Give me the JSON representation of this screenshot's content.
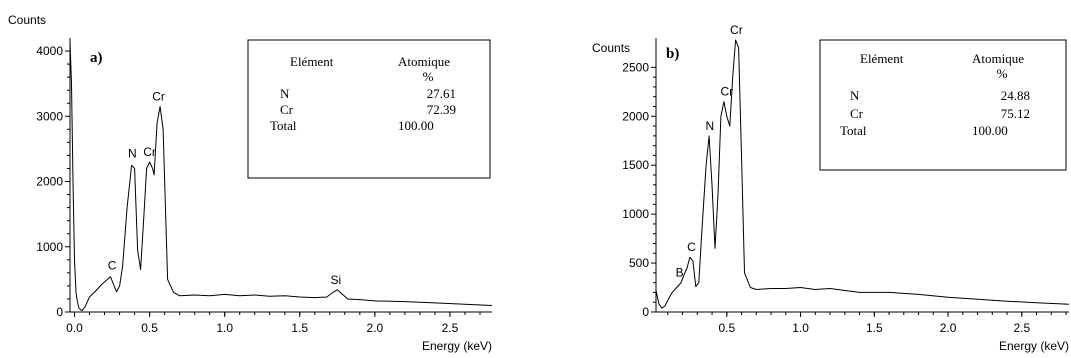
{
  "chart_data": [
    {
      "type": "line",
      "panel_label": "a)",
      "ylabel": "Counts",
      "xlabel": "Energy (keV)",
      "xlim": [
        -0.03,
        2.78
      ],
      "ylim": [
        0,
        4200
      ],
      "xticks": [
        "0.0",
        "0.5",
        "1.0",
        "1.5",
        "2.0",
        "2.5"
      ],
      "xtick_values": [
        0.0,
        0.5,
        1.0,
        1.5,
        2.0,
        2.5
      ],
      "yticks": [
        "0",
        "1000",
        "2000",
        "3000",
        "4000"
      ],
      "ytick_values": [
        0,
        1000,
        2000,
        3000,
        4000
      ],
      "peak_labels": [
        {
          "text": "C",
          "x": 0.25,
          "y": 560
        },
        {
          "text": "N",
          "x": 0.385,
          "y": 2280
        },
        {
          "text": "Cr",
          "x": 0.5,
          "y": 2300
        },
        {
          "text": "Cr",
          "x": 0.56,
          "y": 3150
        },
        {
          "text": "Si",
          "x": 1.74,
          "y": 340
        }
      ],
      "series": [
        {
          "x": [
            -0.03,
            -0.02,
            -0.01,
            0.0,
            0.01,
            0.02,
            0.03,
            0.05,
            0.07,
            0.1,
            0.14,
            0.18,
            0.22,
            0.24,
            0.26,
            0.28,
            0.3,
            0.32,
            0.35,
            0.38,
            0.4,
            0.42,
            0.44,
            0.46,
            0.48,
            0.5,
            0.52,
            0.53,
            0.55,
            0.57,
            0.59,
            0.62,
            0.66,
            0.7,
            0.8,
            0.9,
            1.0,
            1.1,
            1.2,
            1.3,
            1.4,
            1.5,
            1.6,
            1.68,
            1.72,
            1.75,
            1.78,
            1.82,
            1.9,
            2.0,
            2.2,
            2.4,
            2.6,
            2.78
          ],
          "y": [
            4150,
            3500,
            2000,
            800,
            300,
            150,
            60,
            20,
            80,
            230,
            320,
            420,
            500,
            540,
            420,
            310,
            400,
            700,
            1600,
            2250,
            2200,
            950,
            650,
            1400,
            2200,
            2300,
            2200,
            2100,
            2900,
            3150,
            2800,
            500,
            300,
            250,
            260,
            250,
            270,
            250,
            260,
            240,
            250,
            230,
            220,
            230,
            300,
            340,
            280,
            200,
            190,
            170,
            160,
            140,
            120,
            100
          ]
        }
      ],
      "table": {
        "headers": [
          "Elément",
          "Atomique",
          "%"
        ],
        "rows": [
          {
            "element": "N",
            "value": "27.61"
          },
          {
            "element": "Cr",
            "value": "72.39"
          },
          {
            "element": "Total",
            "value": "100.00"
          }
        ]
      }
    },
    {
      "type": "line",
      "panel_label": "b)",
      "ylabel": "Counts",
      "xlabel": "Energy (keV)",
      "xlim": [
        0.02,
        2.82
      ],
      "ylim": [
        0,
        2800
      ],
      "xticks": [
        "0.5",
        "1.0",
        "1.5",
        "2.0",
        "2.5"
      ],
      "xtick_values": [
        0.5,
        1.0,
        1.5,
        2.0,
        2.5
      ],
      "yticks": [
        "0",
        "500",
        "1000",
        "1500",
        "2000",
        "2500"
      ],
      "ytick_values": [
        0,
        500,
        1000,
        1500,
        2000,
        2500
      ],
      "peak_labels": [
        {
          "text": "B",
          "x": 0.18,
          "y": 300
        },
        {
          "text": "C",
          "x": 0.26,
          "y": 560
        },
        {
          "text": "N",
          "x": 0.385,
          "y": 1800
        },
        {
          "text": "Cr",
          "x": 0.5,
          "y": 2150
        },
        {
          "text": "Cr",
          "x": 0.565,
          "y": 2780
        }
      ],
      "series": [
        {
          "x": [
            0.02,
            0.04,
            0.06,
            0.08,
            0.1,
            0.13,
            0.16,
            0.19,
            0.21,
            0.23,
            0.25,
            0.27,
            0.29,
            0.31,
            0.33,
            0.36,
            0.38,
            0.4,
            0.42,
            0.44,
            0.46,
            0.48,
            0.5,
            0.52,
            0.54,
            0.56,
            0.58,
            0.6,
            0.62,
            0.66,
            0.7,
            0.8,
            0.9,
            1.0,
            1.1,
            1.2,
            1.4,
            1.6,
            1.8,
            2.0,
            2.2,
            2.4,
            2.6,
            2.82
          ],
          "y": [
            220,
            80,
            40,
            60,
            120,
            200,
            250,
            300,
            380,
            450,
            560,
            520,
            260,
            300,
            800,
            1500,
            1800,
            1300,
            650,
            1200,
            2000,
            2150,
            2000,
            1900,
            2400,
            2780,
            2700,
            1600,
            400,
            250,
            230,
            240,
            240,
            250,
            230,
            240,
            200,
            200,
            180,
            150,
            130,
            110,
            95,
            80
          ]
        }
      ],
      "table": {
        "headers": [
          "Elément",
          "Atomique",
          "%"
        ],
        "rows": [
          {
            "element": "N",
            "value": "24.88"
          },
          {
            "element": "Cr",
            "value": "75.12"
          },
          {
            "element": "Total",
            "value": "100.00"
          }
        ]
      }
    }
  ]
}
